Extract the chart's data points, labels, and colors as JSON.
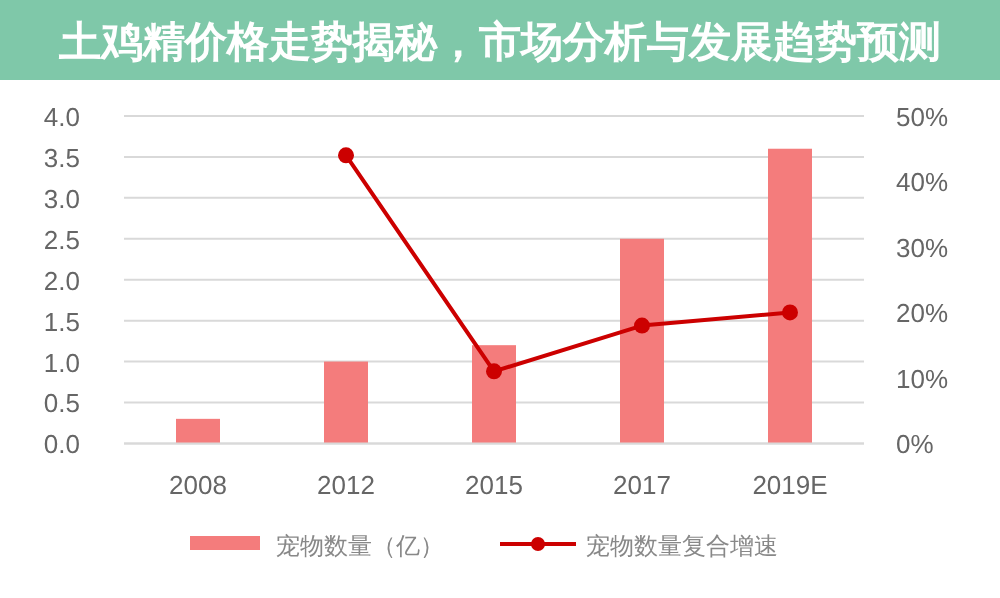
{
  "chart_data": {
    "type": "bar",
    "title": "土鸡精价格走势揭秘，市场分析与发展趋势预测",
    "categories": [
      "2008",
      "2012",
      "2015",
      "2017",
      "2019E"
    ],
    "series": [
      {
        "name": "宠物数量（亿）",
        "color": "#f47c7c",
        "values": [
          0.3,
          1.0,
          1.2,
          2.5,
          3.6
        ]
      },
      {
        "name": "宠物数量复合增速",
        "type": "line",
        "axis": "y2",
        "color": "#cc0000",
        "marker": "circle",
        "values": [
          null,
          44,
          11,
          18,
          20
        ]
      }
    ],
    "ylim": [
      0,
      4
    ],
    "yticks": [
      {
        "value": 0,
        "label": "0.0"
      },
      {
        "value": 0.5,
        "label": "0.5"
      },
      {
        "value": 1,
        "label": "1.0"
      },
      {
        "value": 1.5,
        "label": "1.5"
      },
      {
        "value": 2,
        "label": "2.0"
      },
      {
        "value": 2.5,
        "label": "2.5"
      },
      {
        "value": 3,
        "label": "3.0"
      },
      {
        "value": 3.5,
        "label": "3.5"
      },
      {
        "value": 4,
        "label": "4.0"
      }
    ],
    "y2lim": [
      0,
      50
    ],
    "y2ticks": [
      {
        "value": 0,
        "label": "0%"
      },
      {
        "value": 10,
        "label": "10%"
      },
      {
        "value": 20,
        "label": "20%"
      },
      {
        "value": 30,
        "label": "30%"
      },
      {
        "value": 40,
        "label": "40%"
      },
      {
        "value": 50,
        "label": "50%"
      }
    ],
    "grid": "y",
    "legend": "bottom"
  }
}
